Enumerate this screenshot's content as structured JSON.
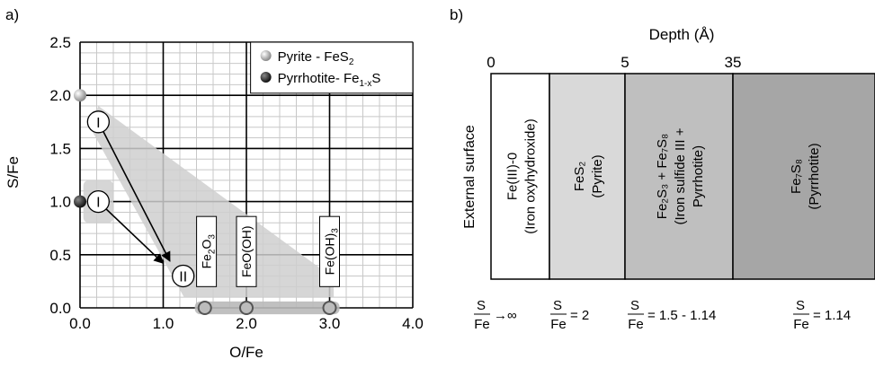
{
  "panel_a": {
    "panel_label": "a)",
    "chart_data": {
      "type": "scatter",
      "xlabel": "O/Fe",
      "ylabel": "S/Fe",
      "xlim": [
        0,
        4
      ],
      "ylim": [
        0,
        2.5
      ],
      "grid": true,
      "x_ticks": [
        0,
        1,
        2,
        3,
        4
      ],
      "x_tick_labels": [
        "0.0",
        "1.0",
        "2.0",
        "3.0",
        "4.0"
      ],
      "y_ticks": [
        0,
        0.5,
        1,
        1.5,
        2,
        2.5
      ],
      "y_tick_labels": [
        "0.0",
        "0.5",
        "1.0",
        "1.5",
        "2.0",
        "2.5"
      ],
      "legend_position": "top-right",
      "legend": [
        {
          "name": "Pyrite - FeS",
          "sub": "2",
          "tail": "",
          "color": "#9a9a9a"
        },
        {
          "name": "Pyrrhotite- Fe",
          "sub": "1-x",
          "tail": "S",
          "color": "#222222"
        }
      ],
      "points": [
        {
          "series": "pyrite",
          "x": 0,
          "y": 2.0,
          "color": "#9a9a9a"
        },
        {
          "series": "pyrrhotite",
          "x": 0,
          "y": 1.0,
          "color": "#222222"
        },
        {
          "series": "oxide",
          "x": 1.5,
          "y": 0,
          "color": "#bcbcbc"
        },
        {
          "series": "oxide",
          "x": 2.0,
          "y": 0,
          "color": "#bcbcbc"
        },
        {
          "series": "oxide",
          "x": 3.0,
          "y": 0,
          "color": "#bcbcbc"
        }
      ],
      "arrows": [
        {
          "from": [
            0.22,
            1.75
          ],
          "to": [
            1.08,
            0.44
          ]
        },
        {
          "from": [
            0.22,
            1.0
          ],
          "to": [
            1.0,
            0.42
          ]
        }
      ],
      "markers": [
        {
          "label": "I",
          "x": 0.22,
          "y": 1.75
        },
        {
          "label": "I",
          "x": 0.22,
          "y": 1.0
        },
        {
          "label": "II",
          "x": 1.24,
          "y": 0.3
        }
      ],
      "compound_labels": [
        {
          "main": "Fe",
          "sub1": "2",
          "mid": "O",
          "sub2": "3",
          "x": 1.52
        },
        {
          "main": "FeO(OH)",
          "sub1": "",
          "mid": "",
          "sub2": "",
          "x": 2.0
        },
        {
          "main": "Fe(OH)",
          "sub1": "3",
          "mid": "",
          "sub2": "",
          "x": 3.0
        }
      ]
    }
  },
  "panel_b": {
    "panel_label": "b)",
    "chart_data": {
      "type": "diagram",
      "title": "Depth (Å)",
      "side_label": "External surface",
      "depth_ticks": [
        "0",
        "5",
        "35"
      ],
      "layers": [
        {
          "line1": "Fe(III)-0",
          "line2": "(Iron oxyhydroxide)",
          "line3": "",
          "color": "#ffffff",
          "ratio": "→∞"
        },
        {
          "line1": "FeS₂",
          "line2": "(Pyrite)",
          "line3": "",
          "color": "#d9d9d9",
          "ratio": "= 2"
        },
        {
          "line1": "Fe₂S₃ + Fe₇S₈",
          "line2": "(Iron sulfide III +",
          "line3": "Pyrrhotite)",
          "color": "#bfbfbf",
          "ratio": "= 1.5 - 1.14"
        },
        {
          "line1": "Fe₇S₈",
          "line2": "(Pyrrhotite)",
          "line3": "",
          "color": "#a6a6a6",
          "ratio": "= 1.14"
        }
      ],
      "ratio_num": "S",
      "ratio_den": "Fe"
    }
  }
}
